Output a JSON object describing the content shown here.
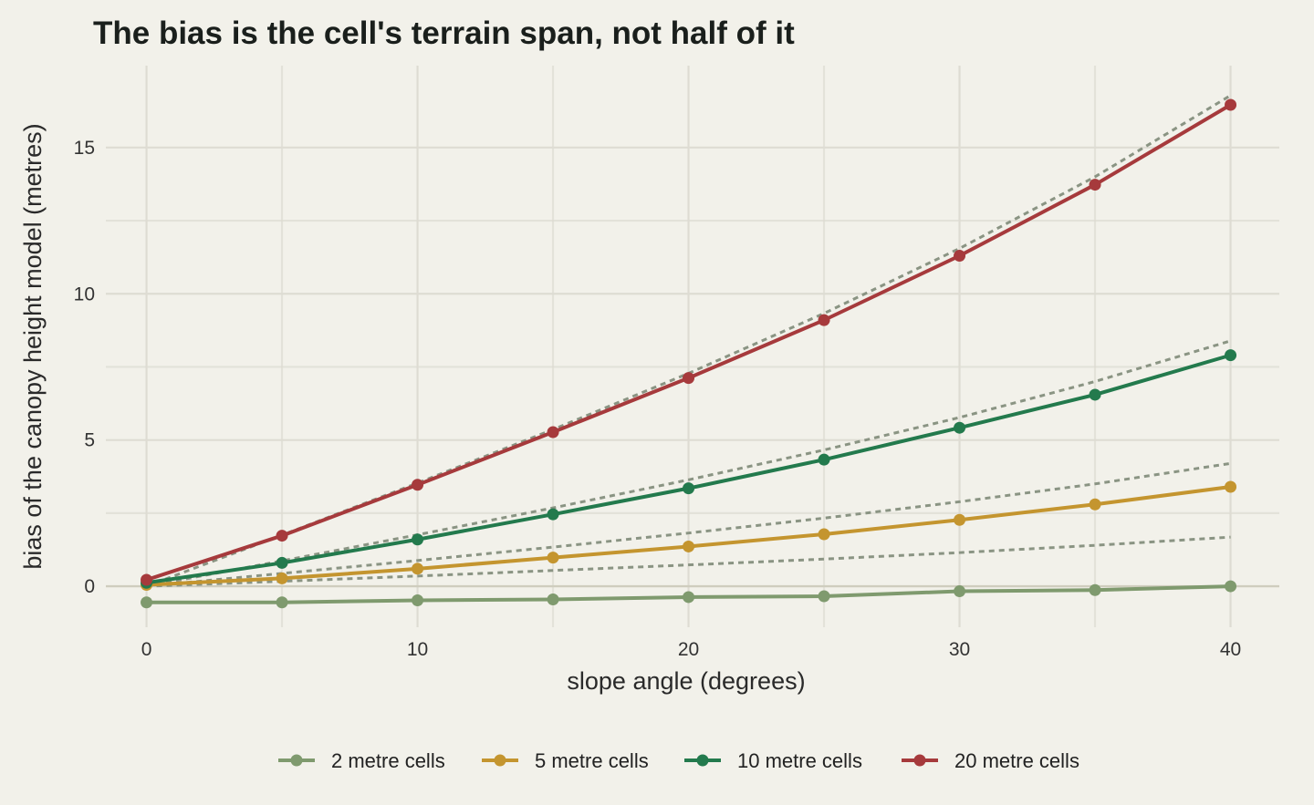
{
  "chart_data": {
    "type": "line",
    "title": "The bias is the cell's terrain span, not half of it",
    "xlabel": "slope angle (degrees)",
    "ylabel": "bias of the canopy height model (metres)",
    "xlim": [
      -1.5,
      41.8
    ],
    "ylim": [
      -1.4,
      17.8
    ],
    "x_ticks": [
      0,
      10,
      20,
      30,
      40
    ],
    "y_ticks": [
      0,
      5,
      10,
      15
    ],
    "grid": true,
    "legend_position": "bottom",
    "x": [
      0,
      5,
      10,
      15,
      20,
      25,
      30,
      35,
      40
    ],
    "series": [
      {
        "name": "2 metre cells",
        "color": "#7f9a6e",
        "values": [
          -0.55,
          -0.55,
          -0.48,
          -0.45,
          -0.37,
          -0.34,
          -0.17,
          -0.13,
          0.0
        ],
        "reference": [
          0.0,
          0.17,
          0.35,
          0.54,
          0.73,
          0.93,
          1.15,
          1.4,
          1.68
        ]
      },
      {
        "name": "5 metre cells",
        "color": "#c4952f",
        "values": [
          0.05,
          0.27,
          0.6,
          0.98,
          1.36,
          1.78,
          2.27,
          2.8,
          3.4
        ],
        "reference": [
          0.0,
          0.44,
          0.88,
          1.34,
          1.82,
          2.33,
          2.89,
          3.5,
          4.2
        ]
      },
      {
        "name": "10 metre cells",
        "color": "#237a4d",
        "values": [
          0.12,
          0.8,
          1.6,
          2.46,
          3.35,
          4.33,
          5.42,
          6.55,
          7.9
        ],
        "reference": [
          0.0,
          0.87,
          1.76,
          2.68,
          3.64,
          4.66,
          5.77,
          7.0,
          8.39
        ]
      },
      {
        "name": "20 metre cells",
        "color": "#a63a3c",
        "values": [
          0.22,
          1.73,
          3.47,
          5.27,
          7.12,
          9.1,
          11.3,
          13.73,
          16.46
        ],
        "reference": [
          0.0,
          1.75,
          3.53,
          5.36,
          7.28,
          9.33,
          11.55,
          14.0,
          16.78
        ]
      }
    ],
    "reference_line_color": "#8a9483",
    "reference_line_style": "dotted"
  }
}
